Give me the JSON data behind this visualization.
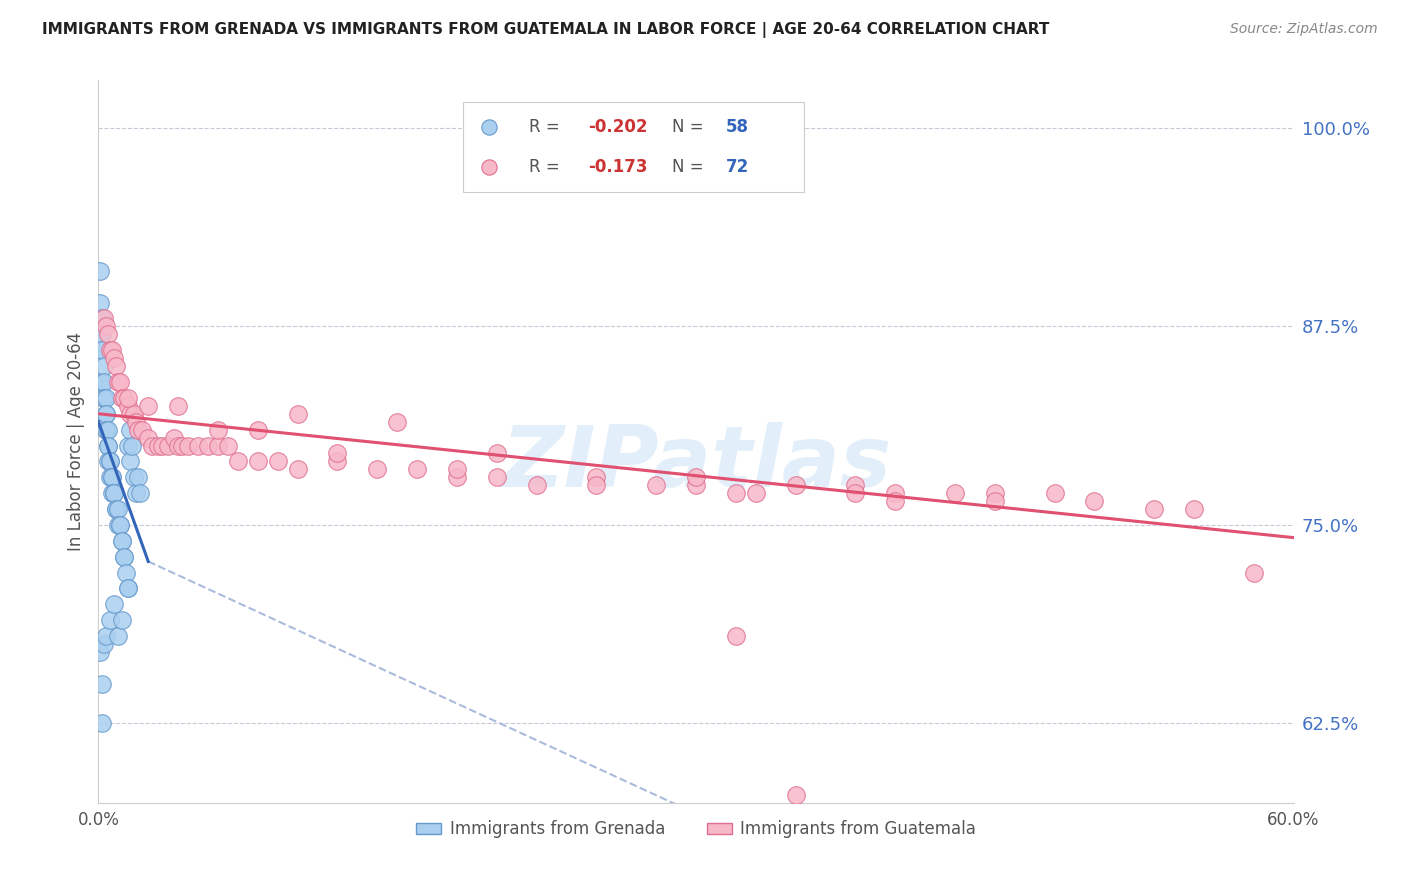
{
  "title": "IMMIGRANTS FROM GRENADA VS IMMIGRANTS FROM GUATEMALA IN LABOR FORCE | AGE 20-64 CORRELATION CHART",
  "source": "Source: ZipAtlas.com",
  "ylabel": "In Labor Force | Age 20-64",
  "right_yticks": [
    0.625,
    0.75,
    0.875,
    1.0
  ],
  "right_ytick_labels": [
    "62.5%",
    "75.0%",
    "87.5%",
    "100.0%"
  ],
  "xlim": [
    0.0,
    0.6
  ],
  "ylim": [
    0.575,
    1.03
  ],
  "grenada_color": "#aacfef",
  "guatemala_color": "#f7b8c8",
  "grenada_edge_color": "#6699cc",
  "guatemala_edge_color": "#e07090",
  "grenada_R": -0.202,
  "grenada_N": 58,
  "guatemala_R": -0.173,
  "guatemala_N": 72,
  "watermark": "ZIPatlas",
  "blue_line_color": "#3366bb",
  "pink_line_color": "#e05070",
  "dash_line_color": "#aabbdd",
  "grenada_line_xstart": 0.0,
  "grenada_line_xend": 0.025,
  "grenada_line_ystart": 0.815,
  "grenada_line_yend": 0.727,
  "dash_xstart": 0.025,
  "dash_xend": 0.6,
  "dash_ystart": 0.727,
  "dash_yend": 0.395,
  "guatemala_line_xstart": 0.0,
  "guatemala_line_xend": 0.6,
  "guatemala_line_ystart": 0.82,
  "guatemala_line_yend": 0.742,
  "grenada_x": [
    0.001,
    0.001,
    0.002,
    0.002,
    0.002,
    0.002,
    0.002,
    0.003,
    0.003,
    0.003,
    0.003,
    0.004,
    0.004,
    0.004,
    0.004,
    0.004,
    0.005,
    0.005,
    0.005,
    0.005,
    0.006,
    0.006,
    0.006,
    0.007,
    0.007,
    0.007,
    0.008,
    0.008,
    0.009,
    0.009,
    0.01,
    0.01,
    0.011,
    0.011,
    0.012,
    0.012,
    0.013,
    0.013,
    0.014,
    0.015,
    0.015,
    0.016,
    0.016,
    0.017,
    0.018,
    0.019,
    0.02,
    0.021,
    0.001,
    0.002,
    0.003,
    0.004,
    0.006,
    0.008,
    0.01,
    0.012,
    0.015,
    0.002
  ],
  "grenada_y": [
    0.91,
    0.89,
    0.88,
    0.87,
    0.86,
    0.86,
    0.84,
    0.85,
    0.84,
    0.83,
    0.83,
    0.83,
    0.82,
    0.82,
    0.81,
    0.81,
    0.81,
    0.8,
    0.8,
    0.79,
    0.79,
    0.79,
    0.78,
    0.78,
    0.78,
    0.77,
    0.77,
    0.77,
    0.76,
    0.76,
    0.76,
    0.75,
    0.75,
    0.75,
    0.74,
    0.74,
    0.73,
    0.73,
    0.72,
    0.71,
    0.8,
    0.81,
    0.79,
    0.8,
    0.78,
    0.77,
    0.78,
    0.77,
    0.67,
    0.65,
    0.675,
    0.68,
    0.69,
    0.7,
    0.68,
    0.69,
    0.71,
    0.625
  ],
  "guatemala_x": [
    0.003,
    0.004,
    0.005,
    0.006,
    0.007,
    0.008,
    0.009,
    0.01,
    0.011,
    0.012,
    0.013,
    0.015,
    0.016,
    0.018,
    0.019,
    0.02,
    0.022,
    0.025,
    0.027,
    0.03,
    0.032,
    0.035,
    0.038,
    0.04,
    0.042,
    0.045,
    0.05,
    0.055,
    0.06,
    0.065,
    0.07,
    0.08,
    0.09,
    0.1,
    0.12,
    0.14,
    0.16,
    0.18,
    0.2,
    0.22,
    0.25,
    0.28,
    0.3,
    0.33,
    0.35,
    0.38,
    0.4,
    0.43,
    0.45,
    0.48,
    0.5,
    0.53,
    0.55,
    0.58,
    0.015,
    0.025,
    0.04,
    0.06,
    0.08,
    0.12,
    0.18,
    0.25,
    0.32,
    0.4,
    0.1,
    0.15,
    0.2,
    0.3,
    0.38,
    0.45,
    0.32,
    0.35
  ],
  "guatemala_y": [
    0.88,
    0.875,
    0.87,
    0.86,
    0.86,
    0.855,
    0.85,
    0.84,
    0.84,
    0.83,
    0.83,
    0.825,
    0.82,
    0.82,
    0.815,
    0.81,
    0.81,
    0.805,
    0.8,
    0.8,
    0.8,
    0.8,
    0.805,
    0.8,
    0.8,
    0.8,
    0.8,
    0.8,
    0.8,
    0.8,
    0.79,
    0.79,
    0.79,
    0.785,
    0.79,
    0.785,
    0.785,
    0.78,
    0.78,
    0.775,
    0.78,
    0.775,
    0.775,
    0.77,
    0.775,
    0.775,
    0.77,
    0.77,
    0.77,
    0.77,
    0.765,
    0.76,
    0.76,
    0.72,
    0.83,
    0.825,
    0.825,
    0.81,
    0.81,
    0.795,
    0.785,
    0.775,
    0.77,
    0.765,
    0.82,
    0.815,
    0.795,
    0.78,
    0.77,
    0.765,
    0.68,
    0.58
  ]
}
